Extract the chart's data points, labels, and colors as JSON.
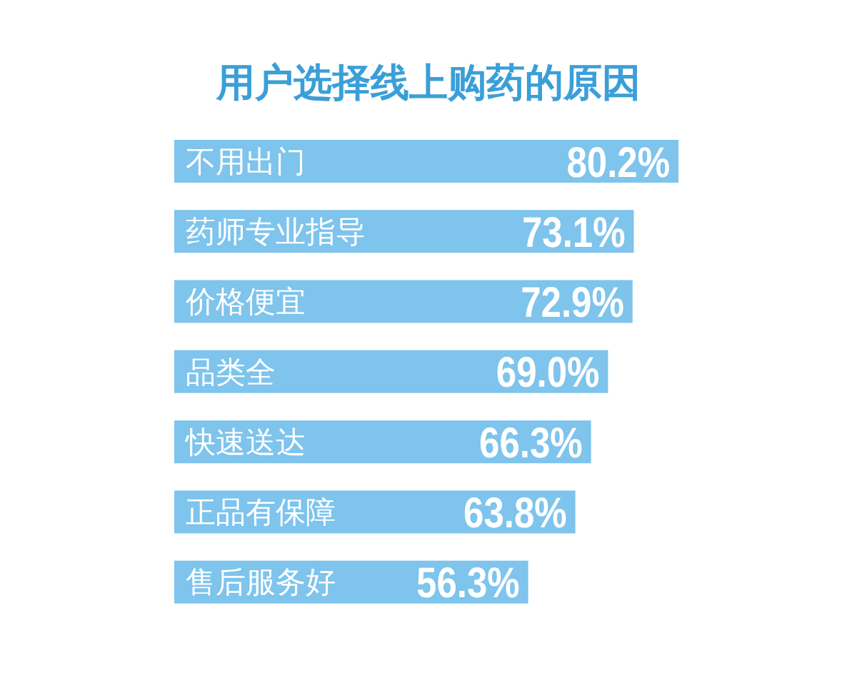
{
  "chart_data": {
    "type": "bar",
    "orientation": "horizontal",
    "title": "用户选择线上购药的原因",
    "categories": [
      "不用出门",
      "药师专业指导",
      "价格便宜",
      "品类全",
      "快速送达",
      "正品有保障",
      "售后服务好"
    ],
    "values": [
      80.2,
      73.1,
      72.9,
      69.0,
      66.3,
      63.8,
      56.3
    ],
    "value_labels": [
      "80.2%",
      "73.1%",
      "72.9%",
      "69.0%",
      "66.3%",
      "63.8%",
      "56.3%"
    ],
    "color": "#7ec4ec"
  }
}
